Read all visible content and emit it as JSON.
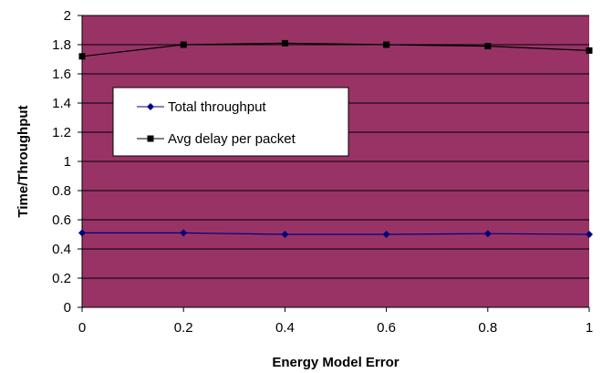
{
  "chart_data": {
    "type": "line",
    "xlabel": "Energy Model Error",
    "ylabel": "Time/Throughput",
    "x": [
      0,
      0.2,
      0.4,
      0.6,
      0.8,
      1
    ],
    "x_ticks": [
      "0",
      "0.2",
      "0.4",
      "0.6",
      "0.8",
      "1"
    ],
    "xlim": [
      0,
      1
    ],
    "y_ticks": [
      "0",
      "0.2",
      "0.4",
      "0.6",
      "0.8",
      "1",
      "1.2",
      "1.4",
      "1.6",
      "1.8",
      "2"
    ],
    "ylim": [
      0,
      2
    ],
    "grid": "horizontal",
    "legend_position": "upper-left",
    "plot_background": "#993366",
    "series": [
      {
        "name": "Total throughput",
        "values": [
          0.51,
          0.51,
          0.5,
          0.5,
          0.505,
          0.5
        ],
        "color": "#000080",
        "marker": "diamond"
      },
      {
        "name": "Avg delay per packet",
        "values": [
          1.72,
          1.8,
          1.81,
          1.8,
          1.79,
          1.76
        ],
        "color": "#000000",
        "marker": "square"
      }
    ]
  }
}
